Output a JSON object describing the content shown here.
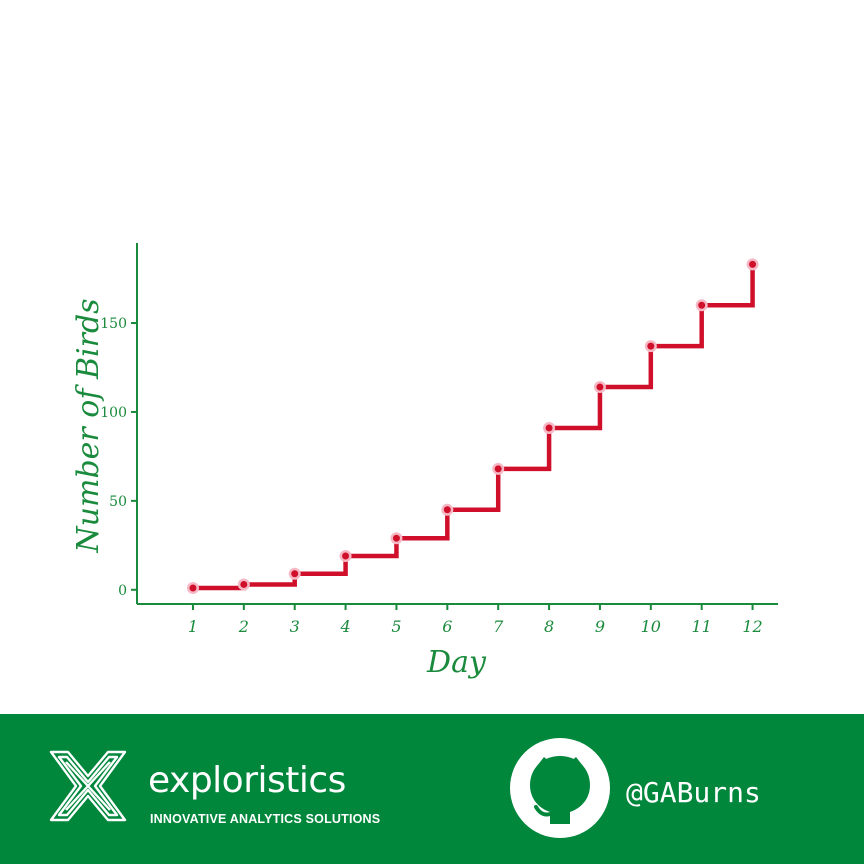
{
  "chart_data": {
    "type": "line",
    "step": true,
    "xlabel": "Day",
    "ylabel": "Number of Birds",
    "x": [
      1,
      2,
      3,
      4,
      5,
      6,
      7,
      8,
      9,
      10,
      11,
      12
    ],
    "values": [
      1,
      3,
      9,
      19,
      29,
      45,
      68,
      91,
      114,
      137,
      160,
      183
    ],
    "x_ticks": [
      "1",
      "2",
      "3",
      "4",
      "5",
      "6",
      "7",
      "8",
      "9",
      "10",
      "11",
      "12"
    ],
    "y_ticks": [
      0,
      50,
      100,
      150
    ],
    "y_tick_labels": [
      "0",
      "50",
      "100",
      "150"
    ],
    "xlim": [
      -0.1,
      12.5
    ],
    "ylim": [
      -8,
      195
    ],
    "grid": false,
    "colors": {
      "line": "#d0102b",
      "marker_halo": "#f5b8c4",
      "axis": "#1a8a3c",
      "text": "#1a8a3c"
    }
  },
  "footer": {
    "brand_name": "exploristics",
    "brand_tagline": "INNOVATIVE ANALYTICS SOLUTIONS",
    "github_handle": "@GABurns",
    "logo_icon": "exploristics-x-logo-icon",
    "github_icon": "github-octocat-icon",
    "background_color": "#00873c"
  }
}
